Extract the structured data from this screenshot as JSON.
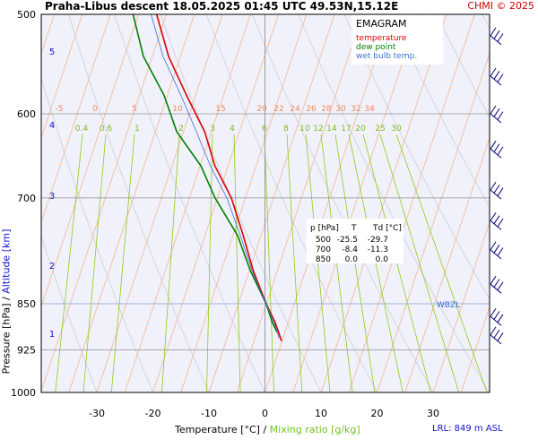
{
  "title": "Praha-Libus   descent   18.05.2025 01:45 UTC  49.53N,15.12E",
  "copyright": "CHMI © 2025",
  "lrl": "LRL: 849 m ASL",
  "wbzl_label": "WBZL",
  "colors": {
    "temperature": "#dd0000",
    "dew_point": "#008000",
    "wet_bulb": "#3b6fd0",
    "isotherm": "#f3b48c",
    "mixing_ratio": "#90cc10",
    "dry_adiabat": "#c9c9c9",
    "background": "#f1f1fc",
    "isobar": "#909090",
    "altitude": "#1010cc",
    "wind": "#00007a"
  },
  "chart_data": {
    "type": "line",
    "xlabel_main": "Temperature [°C]",
    "xlabel_sep": " / ",
    "xlabel_mixing": "Mixing ratio [g/kg]",
    "ylabel_main": "Pressure [hPa]",
    "ylabel_sep": "  /  ",
    "ylabel_alt": "Altitude [km]",
    "x_ticks": [
      -30,
      -20,
      -10,
      0,
      10,
      20,
      30
    ],
    "y_ticks": [
      500,
      600,
      700,
      850,
      925,
      1000
    ],
    "xlim": [
      -39,
      40
    ],
    "ylim": [
      500,
      1000
    ],
    "legend": {
      "title": "EMAGRAM",
      "items": [
        {
          "label": "temperature",
          "key": "temperature"
        },
        {
          "label": "dew point",
          "key": "dew_point"
        },
        {
          "label": "wet bulb temp.",
          "key": "wet_bulb"
        }
      ]
    },
    "table": {
      "headers": [
        "p [hPa]",
        "T",
        "Td [°C]"
      ],
      "rows": [
        [
          "500",
          "-25.5",
          "-29.7"
        ],
        [
          "700",
          "-8.4",
          "-11.3"
        ],
        [
          "850",
          "0.0",
          "0.0"
        ]
      ]
    },
    "isotherm_labels": [
      "-5",
      "0",
      "5",
      "10",
      "15",
      "20",
      "22",
      "24",
      "26",
      "28",
      "30",
      "32",
      "34"
    ],
    "mixing_ratio_labels": [
      "0.4",
      "0.6",
      "1",
      "2",
      "3",
      "4",
      "6",
      "8",
      "10",
      "12",
      "14",
      "17",
      "20",
      "25",
      "30"
    ],
    "altitude_km": [
      1,
      2,
      3,
      4,
      5
    ],
    "series": [
      {
        "name": "temperature",
        "points": [
          [
            -25.5,
            500
          ],
          [
            -22.5,
            540
          ],
          [
            -18.5,
            580
          ],
          [
            -14.5,
            620
          ],
          [
            -12,
            660
          ],
          [
            -8.4,
            700
          ],
          [
            -5.5,
            750
          ],
          [
            -3,
            800
          ],
          [
            0,
            850
          ],
          [
            2,
            880
          ],
          [
            3.5,
            910
          ]
        ]
      },
      {
        "name": "dew point",
        "points": [
          [
            -29.7,
            500
          ],
          [
            -27,
            540
          ],
          [
            -22.5,
            580
          ],
          [
            -19.5,
            620
          ],
          [
            -14.5,
            660
          ],
          [
            -11.3,
            700
          ],
          [
            -6.5,
            750
          ],
          [
            -3.5,
            800
          ],
          [
            0,
            850
          ],
          [
            1.5,
            880
          ],
          [
            2.5,
            895
          ]
        ]
      },
      {
        "name": "wet bulb temp.",
        "points": [
          [
            -26.5,
            500
          ],
          [
            -23.5,
            540
          ],
          [
            -19.5,
            580
          ],
          [
            -16,
            620
          ],
          [
            -12.8,
            660
          ],
          [
            -9.2,
            700
          ],
          [
            -6,
            750
          ],
          [
            -3.2,
            800
          ],
          [
            0,
            850
          ],
          [
            1.8,
            880
          ],
          [
            3,
            905
          ]
        ]
      }
    ],
    "wind_pressures": [
      520,
      560,
      600,
      640,
      690,
      730,
      770,
      820,
      870,
      900
    ]
  }
}
